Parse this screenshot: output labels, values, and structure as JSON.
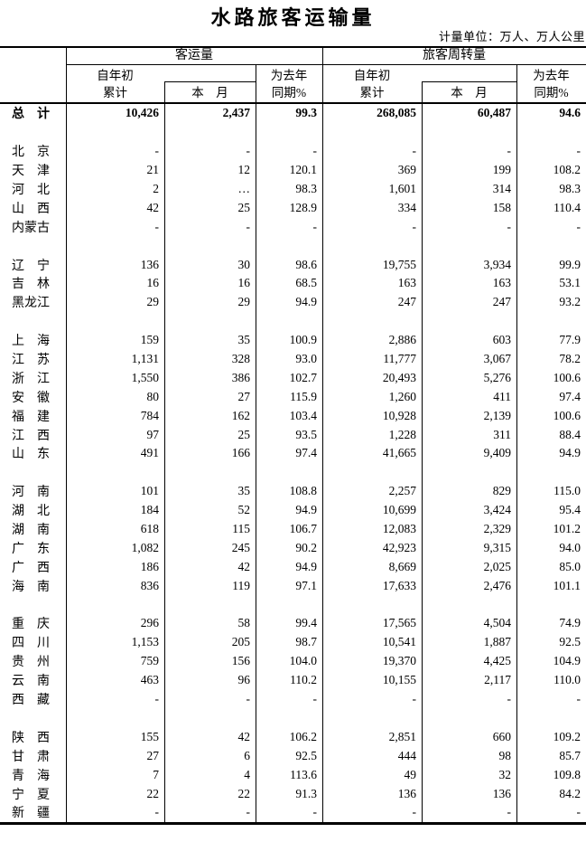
{
  "title": "水路旅客运输量",
  "unit_note": "计量单位：万人、万人公里",
  "table": {
    "sections": {
      "passenger_volume": "客运量",
      "passenger_turnover": "旅客周转量"
    },
    "col_headers": {
      "cumulative_line1": "自年初",
      "cumulative_line2": "累计",
      "month": "本　月",
      "yoy_line1": "为去年",
      "yoy_line2": "同期%"
    },
    "rows": [
      {
        "name": "总　计",
        "bold": true,
        "values": [
          "10,426",
          "2,437",
          "99.3",
          "268,085",
          "60,487",
          "94.6"
        ]
      },
      {
        "blank": true
      },
      {
        "name": "北　京",
        "values": [
          "-",
          "-",
          "-",
          "-",
          "-",
          "-"
        ]
      },
      {
        "name": "天　津",
        "values": [
          "21",
          "12",
          "120.1",
          "369",
          "199",
          "108.2"
        ]
      },
      {
        "name": "河　北",
        "values": [
          "2",
          "…",
          "98.3",
          "1,601",
          "314",
          "98.3"
        ]
      },
      {
        "name": "山　西",
        "values": [
          "42",
          "25",
          "128.9",
          "334",
          "158",
          "110.4"
        ]
      },
      {
        "name": "内蒙古",
        "values": [
          "-",
          "-",
          "-",
          "-",
          "-",
          "-"
        ]
      },
      {
        "blank": true
      },
      {
        "name": "辽　宁",
        "values": [
          "136",
          "30",
          "98.6",
          "19,755",
          "3,934",
          "99.9"
        ]
      },
      {
        "name": "吉　林",
        "values": [
          "16",
          "16",
          "68.5",
          "163",
          "163",
          "53.1"
        ]
      },
      {
        "name": "黑龙江",
        "values": [
          "29",
          "29",
          "94.9",
          "247",
          "247",
          "93.2"
        ]
      },
      {
        "blank": true
      },
      {
        "name": "上　海",
        "values": [
          "159",
          "35",
          "100.9",
          "2,886",
          "603",
          "77.9"
        ]
      },
      {
        "name": "江　苏",
        "values": [
          "1,131",
          "328",
          "93.0",
          "11,777",
          "3,067",
          "78.2"
        ]
      },
      {
        "name": "浙　江",
        "values": [
          "1,550",
          "386",
          "102.7",
          "20,493",
          "5,276",
          "100.6"
        ]
      },
      {
        "name": "安　徽",
        "values": [
          "80",
          "27",
          "115.9",
          "1,260",
          "411",
          "97.4"
        ]
      },
      {
        "name": "福　建",
        "values": [
          "784",
          "162",
          "103.4",
          "10,928",
          "2,139",
          "100.6"
        ]
      },
      {
        "name": "江　西",
        "values": [
          "97",
          "25",
          "93.5",
          "1,228",
          "311",
          "88.4"
        ]
      },
      {
        "name": "山　东",
        "values": [
          "491",
          "166",
          "97.4",
          "41,665",
          "9,409",
          "94.9"
        ]
      },
      {
        "blank": true
      },
      {
        "name": "河　南",
        "values": [
          "101",
          "35",
          "108.8",
          "2,257",
          "829",
          "115.0"
        ]
      },
      {
        "name": "湖　北",
        "values": [
          "184",
          "52",
          "94.9",
          "10,699",
          "3,424",
          "95.4"
        ]
      },
      {
        "name": "湖　南",
        "values": [
          "618",
          "115",
          "106.7",
          "12,083",
          "2,329",
          "101.2"
        ]
      },
      {
        "name": "广　东",
        "values": [
          "1,082",
          "245",
          "90.2",
          "42,923",
          "9,315",
          "94.0"
        ]
      },
      {
        "name": "广　西",
        "values": [
          "186",
          "42",
          "94.9",
          "8,669",
          "2,025",
          "85.0"
        ]
      },
      {
        "name": "海　南",
        "values": [
          "836",
          "119",
          "97.1",
          "17,633",
          "2,476",
          "101.1"
        ]
      },
      {
        "blank": true
      },
      {
        "name": "重　庆",
        "values": [
          "296",
          "58",
          "99.4",
          "17,565",
          "4,504",
          "74.9"
        ]
      },
      {
        "name": "四　川",
        "values": [
          "1,153",
          "205",
          "98.7",
          "10,541",
          "1,887",
          "92.5"
        ]
      },
      {
        "name": "贵　州",
        "values": [
          "759",
          "156",
          "104.0",
          "19,370",
          "4,425",
          "104.9"
        ]
      },
      {
        "name": "云　南",
        "values": [
          "463",
          "96",
          "110.2",
          "10,155",
          "2,117",
          "110.0"
        ]
      },
      {
        "name": "西　藏",
        "values": [
          "-",
          "-",
          "-",
          "-",
          "-",
          "-"
        ]
      },
      {
        "blank": true
      },
      {
        "name": "陕　西",
        "values": [
          "155",
          "42",
          "106.2",
          "2,851",
          "660",
          "109.2"
        ]
      },
      {
        "name": "甘　肃",
        "values": [
          "27",
          "6",
          "92.5",
          "444",
          "98",
          "85.7"
        ]
      },
      {
        "name": "青　海",
        "values": [
          "7",
          "4",
          "113.6",
          "49",
          "32",
          "109.8"
        ]
      },
      {
        "name": "宁　夏",
        "values": [
          "22",
          "22",
          "91.3",
          "136",
          "136",
          "84.2"
        ]
      },
      {
        "name": "新　疆",
        "values": [
          "-",
          "-",
          "-",
          "-",
          "-",
          "-"
        ]
      }
    ]
  }
}
